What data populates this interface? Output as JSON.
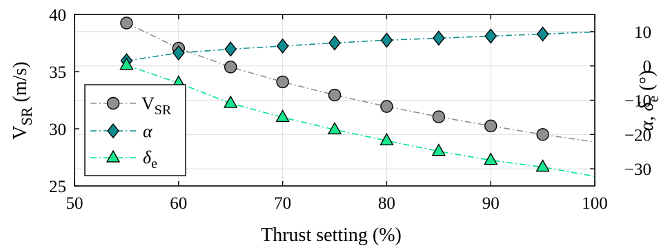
{
  "chart_data": {
    "type": "line",
    "xlabel": "Thrust setting (%)",
    "ylabel_left": {
      "main": "V",
      "sub": "SR",
      "unit": " (m/s)"
    },
    "ylabel_right": {
      "prefix": "α, δ",
      "sub": "e",
      "unit": " (°)"
    },
    "xlim": [
      50,
      100
    ],
    "ylim_left": [
      25,
      40
    ],
    "ylim_right": [
      -35,
      15
    ],
    "x_ticks": [
      50,
      60,
      70,
      80,
      90,
      100
    ],
    "x_tick_labels": [
      "50",
      "60",
      "70",
      "80",
      "90",
      "100"
    ],
    "y_left_ticks": [
      25,
      30,
      35,
      40
    ],
    "y_left_tick_labels": [
      "25",
      "30",
      "35",
      "40"
    ],
    "y_right_ticks": [
      -30,
      -20,
      -10,
      0,
      10
    ],
    "y_right_tick_labels": [
      "−30",
      "−20",
      "−10",
      "0",
      "10"
    ],
    "grid": true,
    "legend_position": "left",
    "series": [
      {
        "name": "V_SR",
        "label_main": "V",
        "label_sub": "SR",
        "axis": "left",
        "marker": "circle",
        "color": "#909090",
        "marker_fill": "#909090",
        "x": [
          55,
          60,
          65,
          70,
          75,
          80,
          85,
          90,
          95
        ],
        "y": [
          39.25,
          37.05,
          35.4,
          34.1,
          32.95,
          31.95,
          31.05,
          30.25,
          29.5
        ],
        "line_x": [
          55,
          60,
          65,
          70,
          75,
          80,
          85,
          90,
          95,
          100
        ],
        "line_y": [
          39.25,
          37.05,
          35.4,
          34.1,
          32.95,
          31.95,
          31.05,
          30.25,
          29.5,
          28.85
        ]
      },
      {
        "name": "α",
        "label_main": "α",
        "label_sub": "",
        "axis": "right",
        "marker": "diamond",
        "color": "#0f8f8f",
        "marker_fill": "#0e8c8f",
        "x": [
          55,
          60,
          65,
          70,
          75,
          80,
          85,
          90,
          95
        ],
        "y": [
          1.5,
          3.8,
          4.9,
          5.8,
          6.7,
          7.5,
          8.1,
          8.7,
          9.3
        ],
        "line_x": [
          55,
          60,
          65,
          70,
          75,
          80,
          85,
          90,
          95,
          100
        ],
        "line_y": [
          1.5,
          3.8,
          4.9,
          5.8,
          6.7,
          7.5,
          8.1,
          8.7,
          9.3,
          9.9
        ]
      },
      {
        "name": "δ_e",
        "label_main": "δ",
        "label_sub": "e",
        "axis": "right",
        "marker": "triangle",
        "color": "#00e68a",
        "marker_fill": "#19e68c",
        "x": [
          55,
          60,
          65,
          70,
          75,
          80,
          85,
          90,
          95
        ],
        "y": [
          0.2,
          -5.0,
          -10.9,
          -15.0,
          -18.6,
          -21.8,
          -24.9,
          -27.5,
          -29.5
        ],
        "line_x": [
          55,
          60,
          65,
          70,
          75,
          80,
          85,
          90,
          95,
          100
        ],
        "line_y": [
          0.2,
          -5.0,
          -10.9,
          -15.0,
          -18.6,
          -21.8,
          -24.9,
          -27.5,
          -29.5,
          -32.2
        ]
      }
    ]
  }
}
